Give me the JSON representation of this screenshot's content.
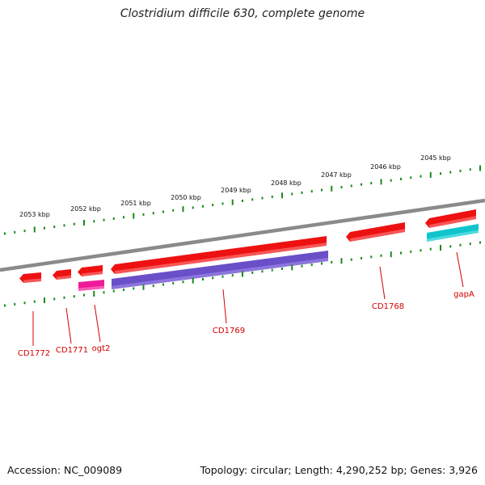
{
  "title": "Clostridium difficile 630, complete genome",
  "footer": {
    "accession": "Accession: NC_009089",
    "summary": "Topology: circular; Length: 4,290,252 bp; Genes: 3,926"
  },
  "colors": {
    "backbone": "#8a8a8a",
    "ticks": "#1a8a1a",
    "gene_cds": "#ee1111",
    "gene_ogt2": "#ee1a9a",
    "gene_cd1769": "#6a4fc8",
    "gene_gapA": "#11c4cc",
    "label": "#d40000"
  },
  "kbp_labels": [
    "2053 kbp",
    "2052 kbp",
    "2051 kbp",
    "2050 kbp",
    "2049 kbp",
    "2048 kbp",
    "2047 kbp",
    "2046 kbp",
    "2045 kbp"
  ],
  "genes": [
    {
      "label": "CD1772",
      "color": "#ee1111"
    },
    {
      "label": "CD1771",
      "color": "#ee1111"
    },
    {
      "label": "ogt2",
      "color": "#ee1a9a"
    },
    {
      "label": "CD1769",
      "color": "#6a4fc8"
    },
    {
      "label": "CD1768",
      "color": "#ee1111"
    },
    {
      "label": "gapA",
      "color": "#11c4cc"
    }
  ]
}
